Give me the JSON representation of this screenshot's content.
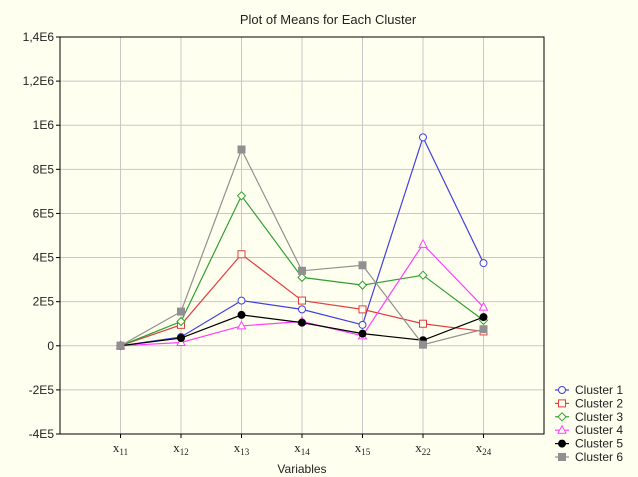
{
  "chart_data": {
    "type": "line",
    "title": "Plot of Means for Each Cluster",
    "xlabel": "Variables",
    "ylabel": "",
    "ylim": [
      -400000,
      1400000
    ],
    "y_ticks": [
      {
        "value": 1400000,
        "label": "1,4E6"
      },
      {
        "value": 1200000,
        "label": "1,2E6"
      },
      {
        "value": 1000000,
        "label": "1E6"
      },
      {
        "value": 800000,
        "label": "8E5"
      },
      {
        "value": 600000,
        "label": "6E5"
      },
      {
        "value": 400000,
        "label": "4E5"
      },
      {
        "value": 200000,
        "label": "2E5"
      },
      {
        "value": 0,
        "label": "0"
      },
      {
        "value": -200000,
        "label": "-2E5"
      },
      {
        "value": -400000,
        "label": "-4E5"
      }
    ],
    "categories": [
      {
        "base": "x",
        "sub": "11"
      },
      {
        "base": "x",
        "sub": "12"
      },
      {
        "base": "x",
        "sub": "13"
      },
      {
        "base": "x",
        "sub": "14"
      },
      {
        "base": "x",
        "sub": "15"
      },
      {
        "base": "x",
        "sub": "22"
      },
      {
        "base": "x",
        "sub": "24"
      }
    ],
    "grid": true,
    "legend_position": "bottom-right",
    "series": [
      {
        "name": "Cluster  1",
        "color": "#4040e0",
        "marker": "circle",
        "values": [
          0,
          40000,
          205000,
          165000,
          95000,
          945000,
          375000
        ]
      },
      {
        "name": "Cluster  2",
        "color": "#e04040",
        "marker": "square",
        "values": [
          0,
          95000,
          415000,
          205000,
          165000,
          100000,
          65000
        ]
      },
      {
        "name": "Cluster  3",
        "color": "#30a030",
        "marker": "diamond",
        "values": [
          0,
          110000,
          680000,
          310000,
          275000,
          320000,
          115000
        ]
      },
      {
        "name": "Cluster  4",
        "color": "#ff40ff",
        "marker": "triangle",
        "values": [
          0,
          15000,
          90000,
          110000,
          45000,
          460000,
          175000
        ]
      },
      {
        "name": "Cluster  5",
        "color": "#000000",
        "marker": "filled-circle",
        "values": [
          0,
          35000,
          140000,
          105000,
          55000,
          25000,
          130000
        ]
      },
      {
        "name": "Cluster  6",
        "color": "#909090",
        "marker": "filled-square",
        "values": [
          0,
          155000,
          890000,
          340000,
          365000,
          5000,
          75000
        ]
      }
    ]
  }
}
